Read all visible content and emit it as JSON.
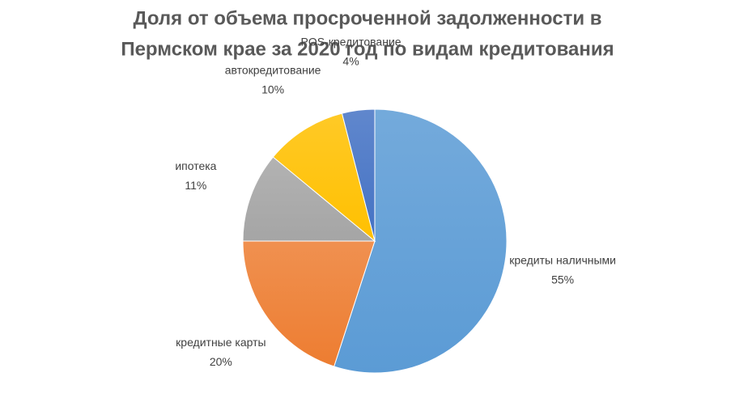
{
  "chart_data": {
    "type": "pie",
    "title": [
      "Доля от объема просроченной задолженности в",
      "Пермском крае за 2020 год по видам кредитования"
    ],
    "categories": [
      "кредиты наличными",
      "кредитные карты",
      "ипотека",
      "автокредитование",
      "POS-кредитование"
    ],
    "values": [
      55,
      20,
      11,
      10,
      4
    ],
    "value_labels": [
      "55%",
      "20%",
      "11%",
      "10%",
      "4%"
    ],
    "colors": [
      "#5b9bd5",
      "#ed7d31",
      "#a5a5a5",
      "#ffc000",
      "#4472c4"
    ]
  }
}
